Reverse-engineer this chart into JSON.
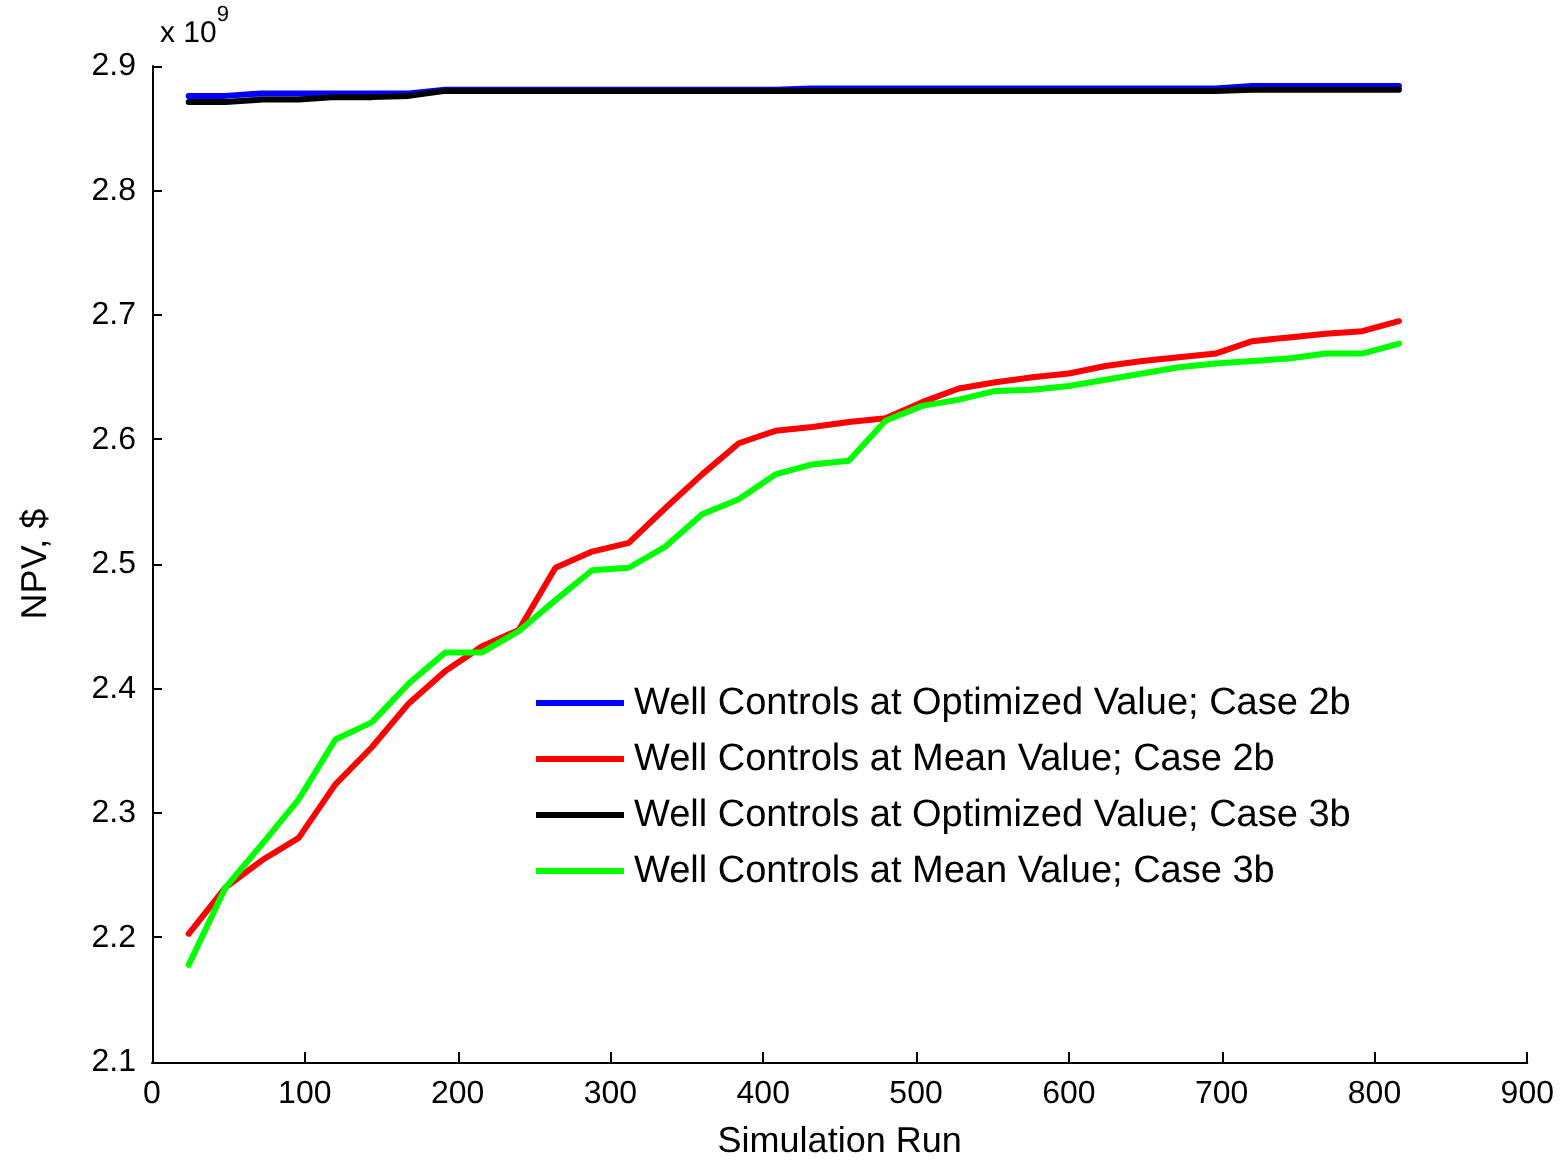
{
  "chart_data": {
    "type": "line",
    "xlabel": "Simulation Run",
    "ylabel": "NPV, $",
    "annotations": [
      "x 10$^{9}$"
    ],
    "x": [
      24,
      48,
      72,
      96,
      120,
      144,
      168,
      192,
      216,
      240,
      264,
      288,
      312,
      336,
      360,
      384,
      408,
      432,
      456,
      480,
      504,
      528,
      552,
      576,
      600,
      624,
      648,
      672,
      696,
      720,
      744,
      768,
      792,
      816
    ],
    "series": [
      {
        "name": "Well Controls at Optimized Value; Case 2b",
        "color": "#0000ff",
        "values": [
          2.876,
          2.876,
          2.878,
          2.878,
          2.878,
          2.878,
          2.878,
          2.881,
          2.881,
          2.881,
          2.881,
          2.881,
          2.881,
          2.881,
          2.881,
          2.881,
          2.881,
          2.882,
          2.882,
          2.882,
          2.882,
          2.882,
          2.882,
          2.882,
          2.882,
          2.882,
          2.882,
          2.882,
          2.882,
          2.884,
          2.884,
          2.884,
          2.884,
          2.884
        ]
      },
      {
        "name": "Well Controls at Mean Value; Case 2b",
        "color": "#ff0000",
        "values": [
          2.203,
          2.24,
          2.262,
          2.28,
          2.323,
          2.353,
          2.388,
          2.414,
          2.434,
          2.447,
          2.497,
          2.51,
          2.517,
          2.545,
          2.572,
          2.597,
          2.607,
          2.61,
          2.614,
          2.617,
          2.63,
          2.641,
          2.646,
          2.65,
          2.653,
          2.659,
          2.663,
          2.666,
          2.669,
          2.679,
          2.682,
          2.685,
          2.687,
          2.695
        ]
      },
      {
        "name": "Well Controls at Optimized Value; Case 3b",
        "color": "#000000",
        "values": [
          2.871,
          2.871,
          2.873,
          2.873,
          2.875,
          2.875,
          2.876,
          2.88,
          2.88,
          2.88,
          2.88,
          2.88,
          2.88,
          2.88,
          2.88,
          2.88,
          2.88,
          2.88,
          2.88,
          2.88,
          2.88,
          2.88,
          2.88,
          2.88,
          2.88,
          2.88,
          2.88,
          2.88,
          2.88,
          2.881,
          2.881,
          2.881,
          2.881,
          2.881
        ]
      },
      {
        "name": "Well Controls at Mean Value; Case 3b",
        "color": "#00ff00",
        "values": [
          2.178,
          2.24,
          2.275,
          2.311,
          2.359,
          2.373,
          2.404,
          2.429,
          2.429,
          2.446,
          2.471,
          2.495,
          2.497,
          2.514,
          2.54,
          2.552,
          2.572,
          2.58,
          2.583,
          2.615,
          2.627,
          2.632,
          2.639,
          2.64,
          2.643,
          2.648,
          2.653,
          2.658,
          2.661,
          2.663,
          2.665,
          2.669,
          2.669,
          2.677
        ]
      }
    ],
    "xlim": [
      0,
      900
    ],
    "xticks": [
      0,
      100,
      200,
      300,
      400,
      500,
      600,
      700,
      800,
      900
    ],
    "ylim": [
      2.1,
      2.9
    ],
    "yticks": [
      2.1,
      2.2,
      2.3,
      2.4,
      2.5,
      2.6,
      2.7,
      2.8,
      2.9
    ],
    "grid": false,
    "legend": "bottom right",
    "marker": "none",
    "line_style": "solid"
  }
}
